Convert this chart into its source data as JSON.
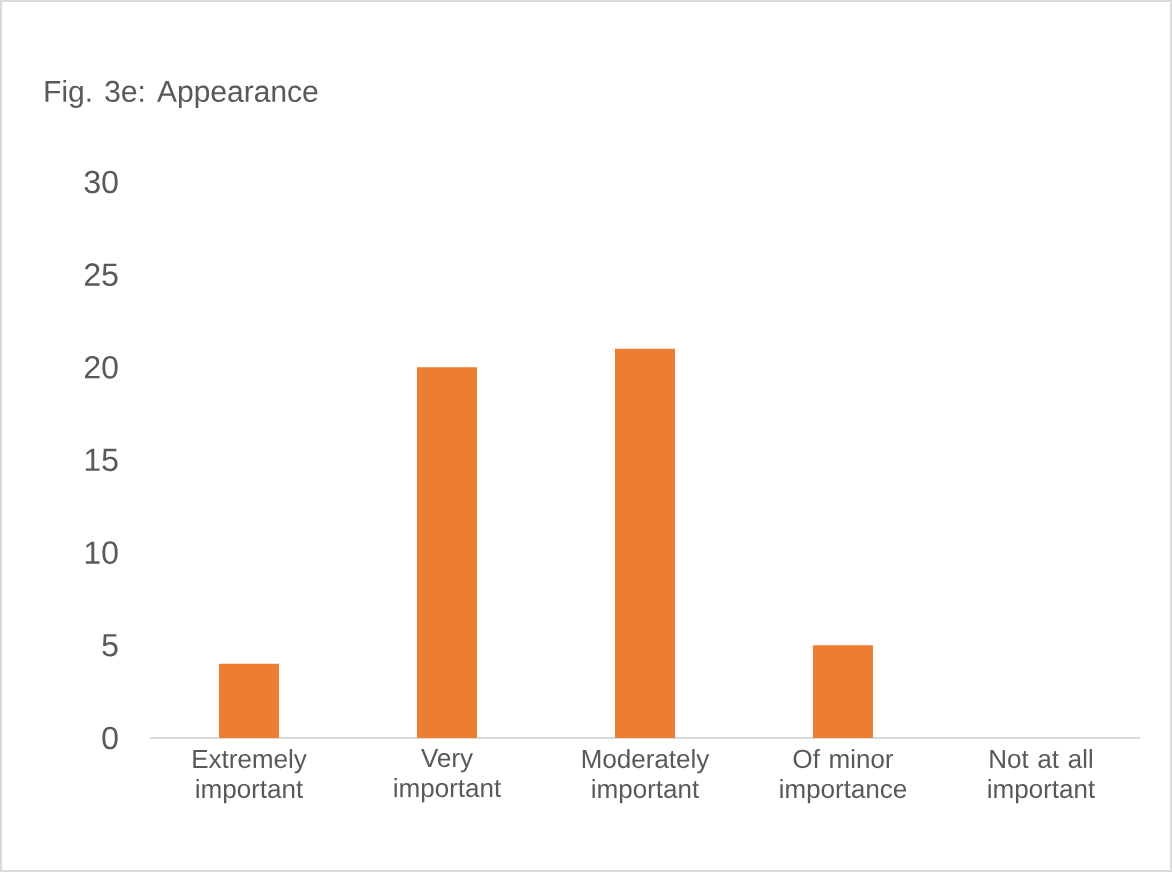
{
  "chart_data": {
    "type": "bar",
    "title": "Fig. 3e: Appearance",
    "categories": [
      "Extremely important",
      "Very important",
      "Moderately important",
      "Of minor importance",
      "Not at all important"
    ],
    "values": [
      4,
      20,
      21,
      5,
      0
    ],
    "color": "#ed7d31",
    "ylim": [
      0,
      30
    ],
    "yticks": [
      0,
      5,
      10,
      15,
      20,
      25,
      30
    ]
  }
}
